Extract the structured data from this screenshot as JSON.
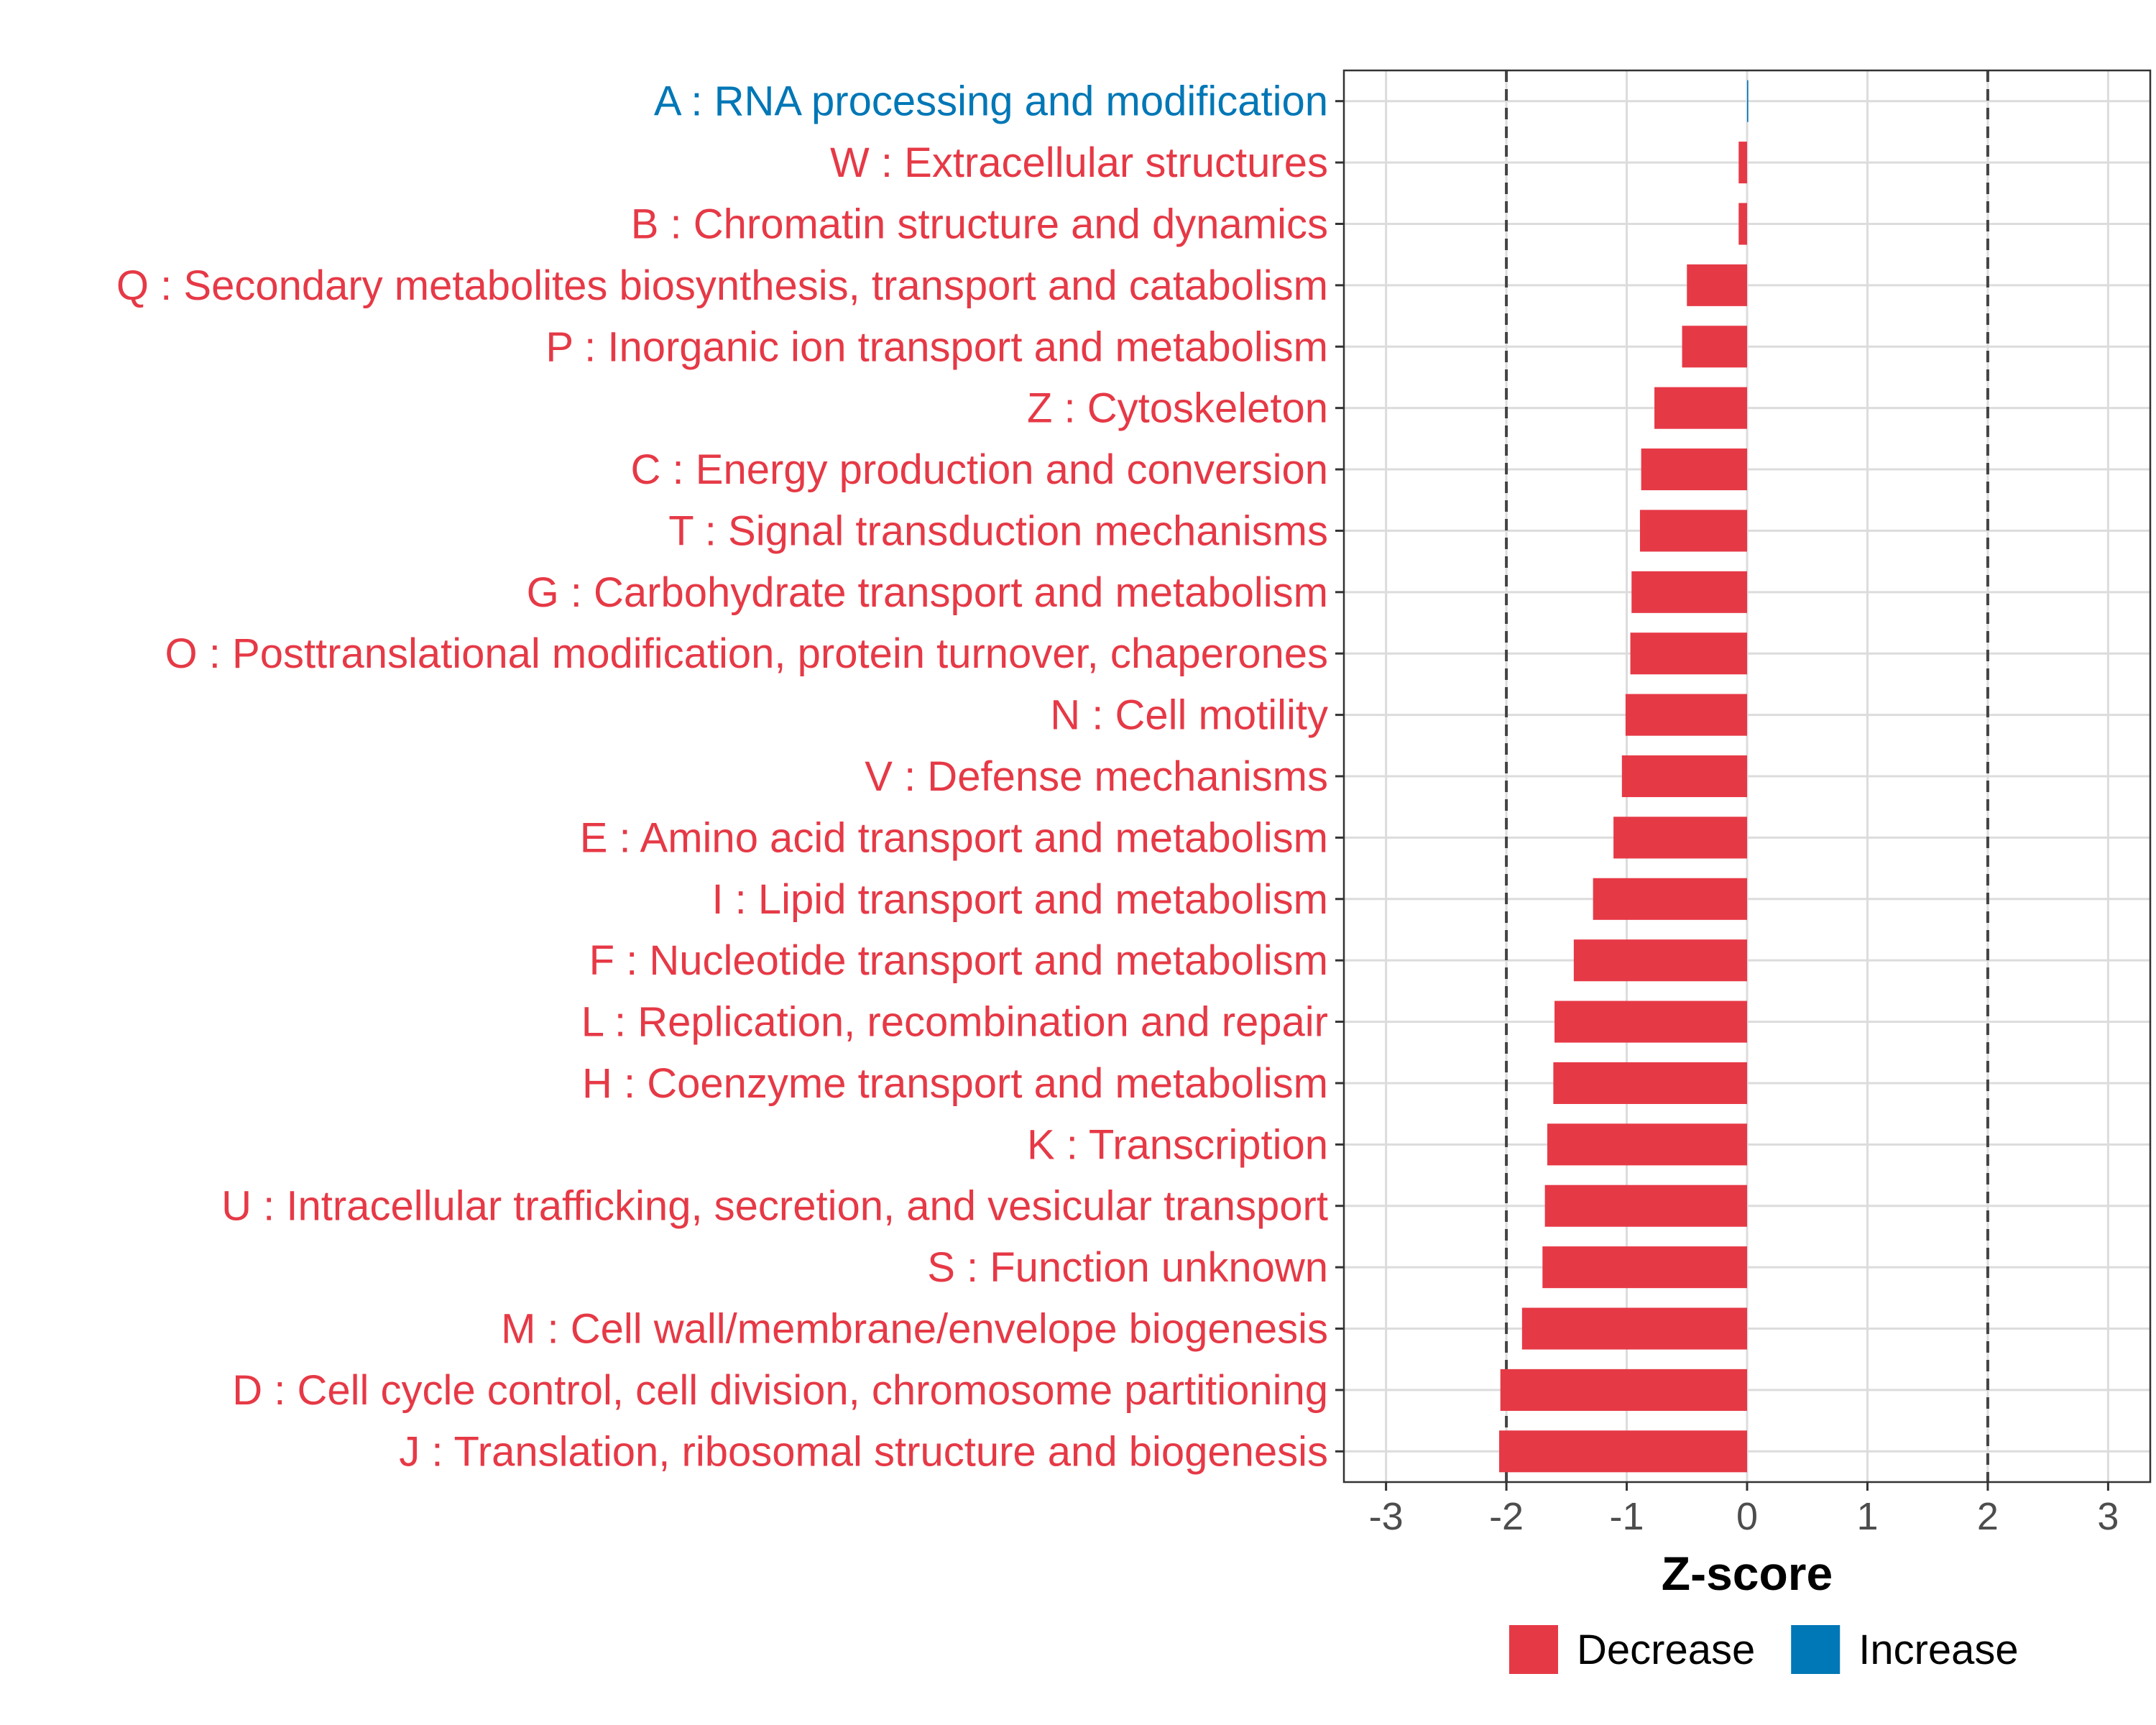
{
  "chart_data": {
    "type": "bar",
    "orientation": "horizontal",
    "title": "",
    "xlabel": "Z-score",
    "ylabel": "",
    "xlim": [
      -3.35,
      3.35
    ],
    "xticks": [
      -3,
      -2,
      -1,
      0,
      1,
      2,
      3
    ],
    "reference_lines": [
      -2,
      2
    ],
    "grid": true,
    "legend_position": "bottom",
    "colors": {
      "Decrease": "#e63946",
      "Increase": "#0077b6"
    },
    "legend": [
      {
        "name": "Decrease",
        "color": "#e63946"
      },
      {
        "name": "Increase",
        "color": "#0077b6"
      }
    ],
    "categories": [
      {
        "label": "A : RNA processing and modification",
        "value": 0.01,
        "direction": "Increase"
      },
      {
        "label": "W : Extracellular structures",
        "value": -0.07,
        "direction": "Decrease"
      },
      {
        "label": "B : Chromatin structure and dynamics",
        "value": -0.07,
        "direction": "Decrease"
      },
      {
        "label": "Q : Secondary metabolites biosynthesis, transport and catabolism",
        "value": -0.5,
        "direction": "Decrease"
      },
      {
        "label": "P : Inorganic ion transport and metabolism",
        "value": -0.54,
        "direction": "Decrease"
      },
      {
        "label": "Z : Cytoskeleton",
        "value": -0.77,
        "direction": "Decrease"
      },
      {
        "label": "C : Energy production and conversion",
        "value": -0.88,
        "direction": "Decrease"
      },
      {
        "label": "T : Signal transduction mechanisms",
        "value": -0.89,
        "direction": "Decrease"
      },
      {
        "label": "G : Carbohydrate transport and metabolism",
        "value": -0.96,
        "direction": "Decrease"
      },
      {
        "label": "O : Posttranslational modification, protein turnover, chaperones",
        "value": -0.97,
        "direction": "Decrease"
      },
      {
        "label": "N : Cell motility",
        "value": -1.01,
        "direction": "Decrease"
      },
      {
        "label": "V : Defense mechanisms",
        "value": -1.04,
        "direction": "Decrease"
      },
      {
        "label": "E : Amino acid transport and metabolism",
        "value": -1.11,
        "direction": "Decrease"
      },
      {
        "label": "I : Lipid transport and metabolism",
        "value": -1.28,
        "direction": "Decrease"
      },
      {
        "label": "F : Nucleotide transport and metabolism",
        "value": -1.44,
        "direction": "Decrease"
      },
      {
        "label": "L : Replication, recombination and repair",
        "value": -1.6,
        "direction": "Decrease"
      },
      {
        "label": "H : Coenzyme transport and metabolism",
        "value": -1.61,
        "direction": "Decrease"
      },
      {
        "label": "K : Transcription",
        "value": -1.66,
        "direction": "Decrease"
      },
      {
        "label": "U : Intracellular trafficking, secretion, and vesicular transport",
        "value": -1.68,
        "direction": "Decrease"
      },
      {
        "label": "S : Function unknown",
        "value": -1.7,
        "direction": "Decrease"
      },
      {
        "label": "M : Cell wall/membrane/envelope biogenesis",
        "value": -1.87,
        "direction": "Decrease"
      },
      {
        "label": "D : Cell cycle control, cell division, chromosome partitioning",
        "value": -2.05,
        "direction": "Decrease"
      },
      {
        "label": "J : Translation, ribosomal structure and biogenesis",
        "value": -2.06,
        "direction": "Decrease"
      }
    ]
  }
}
